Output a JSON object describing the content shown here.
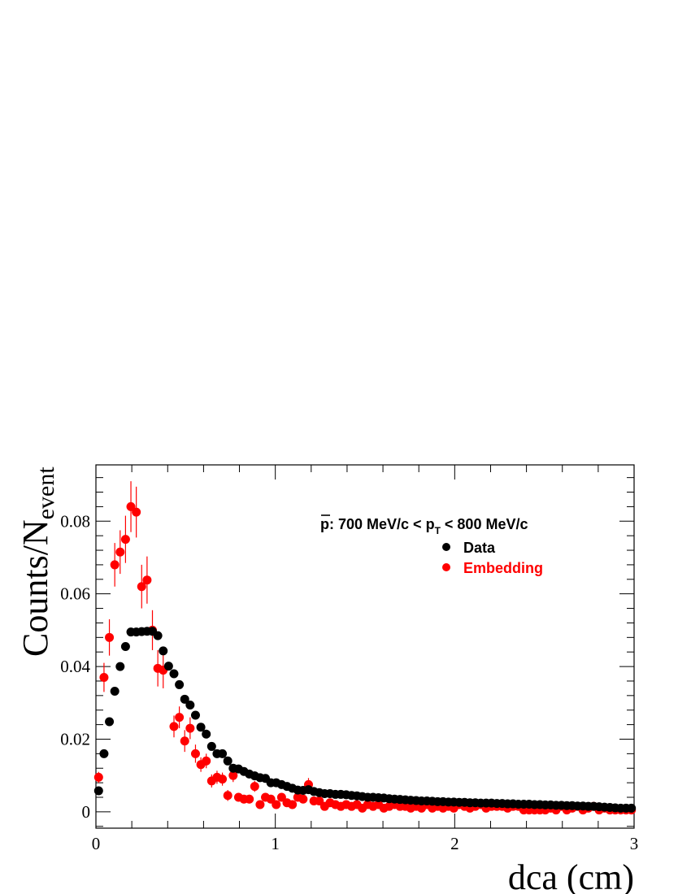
{
  "chart_data": {
    "type": "scatter",
    "xlabel": "dca (cm)",
    "ylabel": "Counts/N",
    "ylabel_sub": "event",
    "annotation": {
      "particle": "p",
      "text_before_sub": ": 700 MeV/c < p",
      "sub": "T",
      "text_after_sub": " < 800 MeV/c"
    },
    "xlim": [
      0,
      3
    ],
    "ylim": [
      -0.0045,
      0.0955
    ],
    "x_ticks": [
      0,
      1,
      2,
      3
    ],
    "x_tick_labels": [
      "0",
      "1",
      "2",
      "3"
    ],
    "y_ticks": [
      0,
      0.02,
      0.04,
      0.06,
      0.08
    ],
    "y_tick_labels": [
      "0",
      "0.02",
      "0.04",
      "0.06",
      "0.08"
    ],
    "legend_position": "top-right",
    "grid": false,
    "series": [
      {
        "name": "Data",
        "color": "#000000",
        "x": [
          0.015,
          0.045,
          0.075,
          0.105,
          0.135,
          0.165,
          0.195,
          0.225,
          0.255,
          0.285,
          0.315,
          0.345,
          0.375,
          0.405,
          0.435,
          0.465,
          0.495,
          0.525,
          0.555,
          0.585,
          0.615,
          0.645,
          0.675,
          0.705,
          0.735,
          0.765,
          0.795,
          0.825,
          0.855,
          0.885,
          0.915,
          0.945,
          0.975,
          1.005,
          1.035,
          1.065,
          1.095,
          1.125,
          1.155,
          1.185,
          1.215,
          1.245,
          1.275,
          1.305,
          1.335,
          1.365,
          1.395,
          1.425,
          1.455,
          1.485,
          1.515,
          1.545,
          1.575,
          1.605,
          1.635,
          1.665,
          1.695,
          1.725,
          1.755,
          1.785,
          1.815,
          1.845,
          1.875,
          1.905,
          1.935,
          1.965,
          1.995,
          2.025,
          2.055,
          2.085,
          2.115,
          2.145,
          2.175,
          2.205,
          2.235,
          2.265,
          2.295,
          2.325,
          2.355,
          2.385,
          2.415,
          2.445,
          2.475,
          2.505,
          2.535,
          2.565,
          2.595,
          2.625,
          2.655,
          2.685,
          2.715,
          2.745,
          2.775,
          2.805,
          2.835,
          2.865,
          2.895,
          2.925,
          2.955,
          2.985
        ],
        "y": [
          0.0058,
          0.016,
          0.0248,
          0.0332,
          0.04,
          0.0455,
          0.0495,
          0.0495,
          0.0496,
          0.0497,
          0.0497,
          0.0485,
          0.0443,
          0.0401,
          0.038,
          0.035,
          0.031,
          0.0294,
          0.0266,
          0.0233,
          0.0214,
          0.018,
          0.016,
          0.016,
          0.014,
          0.012,
          0.0118,
          0.0111,
          0.0104,
          0.0099,
          0.0094,
          0.0092,
          0.008,
          0.008,
          0.0075,
          0.007,
          0.0065,
          0.006,
          0.0059,
          0.0061,
          0.0056,
          0.0053,
          0.005,
          0.005,
          0.0048,
          0.0048,
          0.0047,
          0.0045,
          0.0044,
          0.0042,
          0.004,
          0.004,
          0.0039,
          0.0038,
          0.0036,
          0.0035,
          0.0034,
          0.0033,
          0.0032,
          0.0031,
          0.003,
          0.003,
          0.0029,
          0.0028,
          0.0028,
          0.0027,
          0.0027,
          0.0026,
          0.0026,
          0.0025,
          0.0025,
          0.0024,
          0.0024,
          0.0024,
          0.0023,
          0.0023,
          0.0022,
          0.0022,
          0.0021,
          0.0021,
          0.0021,
          0.002,
          0.002,
          0.0019,
          0.0019,
          0.0018,
          0.0018,
          0.0017,
          0.0017,
          0.0016,
          0.0016,
          0.0015,
          0.0015,
          0.0014,
          0.0013,
          0.0012,
          0.0011,
          0.001,
          0.001,
          0.001
        ]
      },
      {
        "name": "Embedding",
        "color": "#ff0000",
        "x": [
          0.015,
          0.045,
          0.075,
          0.105,
          0.135,
          0.165,
          0.195,
          0.225,
          0.255,
          0.285,
          0.315,
          0.345,
          0.375,
          0.405,
          0.435,
          0.465,
          0.495,
          0.525,
          0.555,
          0.585,
          0.615,
          0.645,
          0.675,
          0.705,
          0.735,
          0.765,
          0.795,
          0.825,
          0.855,
          0.885,
          0.915,
          0.945,
          0.975,
          1.005,
          1.035,
          1.065,
          1.095,
          1.125,
          1.155,
          1.185,
          1.215,
          1.245,
          1.275,
          1.305,
          1.335,
          1.365,
          1.395,
          1.425,
          1.455,
          1.485,
          1.515,
          1.545,
          1.575,
          1.605,
          1.635,
          1.665,
          1.695,
          1.725,
          1.755,
          1.785,
          1.815,
          1.845,
          1.875,
          1.905,
          1.935,
          1.965,
          1.995,
          2.025,
          2.055,
          2.085,
          2.115,
          2.145,
          2.175,
          2.205,
          2.235,
          2.265,
          2.295,
          2.325,
          2.355,
          2.385,
          2.415,
          2.445,
          2.475,
          2.505,
          2.535,
          2.565,
          2.595,
          2.625,
          2.655,
          2.685,
          2.715,
          2.745,
          2.775,
          2.805,
          2.835,
          2.865,
          2.895,
          2.925,
          2.955,
          2.985
        ],
        "y": [
          0.0095,
          0.037,
          0.048,
          0.068,
          0.0715,
          0.075,
          0.084,
          0.0825,
          0.062,
          0.0638,
          0.05,
          0.0395,
          0.039,
          null,
          0.0235,
          0.026,
          0.0195,
          0.023,
          0.016,
          0.013,
          0.014,
          0.0085,
          0.0095,
          0.009,
          0.0045,
          0.01,
          0.004,
          0.0035,
          0.0035,
          0.007,
          0.002,
          0.004,
          0.0035,
          0.002,
          0.004,
          0.0025,
          0.002,
          0.004,
          0.0035,
          0.0075,
          0.003,
          0.003,
          0.0015,
          0.0025,
          0.002,
          0.0015,
          0.002,
          0.0015,
          0.002,
          0.001,
          0.002,
          0.0015,
          0.002,
          0.001,
          0.0015,
          0.002,
          0.0015,
          0.0015,
          0.001,
          0.0015,
          0.001,
          0.002,
          0.001,
          0.0015,
          0.001,
          0.0015,
          0.001,
          0.002,
          0.0015,
          0.001,
          0.0015,
          0.002,
          0.001,
          0.0015,
          0.0015,
          0.0015,
          0.001,
          0.0015,
          0.0015,
          0.0005,
          0.0005,
          0.0005,
          0.0005,
          0.0005,
          0.001,
          0.0005,
          0.0015,
          0.0005,
          0.001,
          0.0015,
          0.0005,
          0.001,
          0.0015,
          0.0005,
          0.001,
          0.0005,
          0.0005,
          0.0005,
          0.0005,
          0.0005
        ],
        "yerr": [
          0.0015,
          0.004,
          0.005,
          0.006,
          0.006,
          0.0065,
          0.007,
          0.007,
          0.006,
          0.0065,
          0.0055,
          0.005,
          0.005,
          0,
          0.003,
          0.003,
          0.003,
          0.003,
          0.0025,
          0.002,
          0.002,
          0.0018,
          0.0018,
          0.0018,
          0.0015,
          0.0018,
          0.0012,
          0.0012,
          0.0012,
          0.0015,
          0.001,
          0.0012,
          0.0012,
          0.001,
          0.0012,
          0.001,
          0.001,
          0.0012,
          0.001,
          0.0018,
          0.001,
          0.001,
          0.0008,
          0.001,
          0.0008,
          0.0008,
          0.0008,
          0.0008,
          0.0008,
          0.0006,
          0.0008,
          0.0006,
          0.0008,
          0.0006,
          0.0006,
          0.0008,
          0.0006,
          0.0006,
          0.0006,
          0.0006,
          0.0006,
          0.0008,
          0.0006,
          0.0006,
          0.0006,
          0.0006,
          0.0006,
          0.0008,
          0.0006,
          0.0006,
          0.0006,
          0.0008,
          0.0006,
          0.0006,
          0.0006,
          0.0006,
          0.0006,
          0.0006,
          0.0006,
          0.0005,
          0.0005,
          0.0005,
          0.0005,
          0.0005,
          0.0006,
          0.0005,
          0.0006,
          0.0005,
          0.0006,
          0.0006,
          0.0005,
          0.0006,
          0.0006,
          0.0005,
          0.0006,
          0.0005,
          0.0005,
          0.0005,
          0.0005,
          0.0005
        ]
      }
    ]
  }
}
